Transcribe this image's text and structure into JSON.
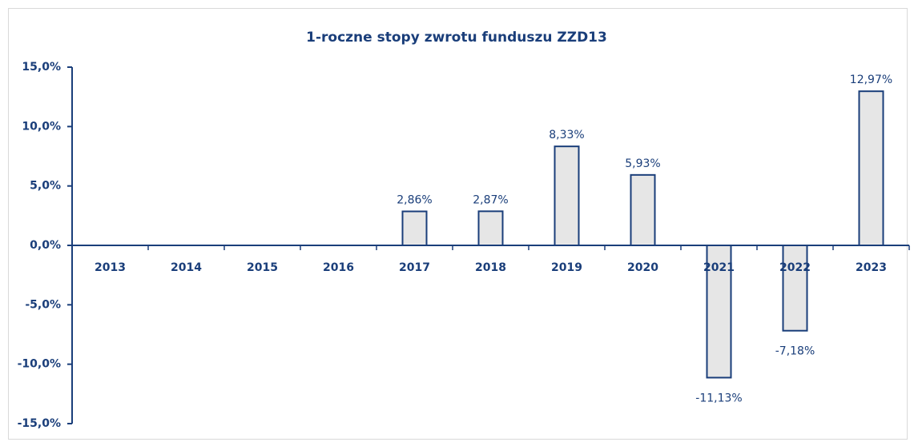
{
  "chart_data": {
    "type": "bar",
    "title": "1-roczne stopy zwrotu funduszu ZZD13",
    "categories": [
      "2013",
      "2014",
      "2015",
      "2016",
      "2017",
      "2018",
      "2019",
      "2020",
      "2021",
      "2022",
      "2023"
    ],
    "values": [
      null,
      null,
      null,
      null,
      2.86,
      2.87,
      8.33,
      5.93,
      -11.13,
      -7.18,
      12.97
    ],
    "value_labels": [
      null,
      null,
      null,
      null,
      "2,86%",
      "2,87%",
      "8,33%",
      "5,93%",
      "-11,13%",
      "-7,18%",
      "12,97%"
    ],
    "color": "#e6e6e6",
    "edge_color": "#1a3e7a",
    "ylim": [
      -15,
      15
    ],
    "yticks": [
      {
        "value": -15,
        "label": "-15,0%"
      },
      {
        "value": -10,
        "label": "-10,0%"
      },
      {
        "value": -5,
        "label": "-5,0%"
      },
      {
        "value": 0,
        "label": "0,0%"
      },
      {
        "value": 5,
        "label": "5,0%"
      },
      {
        "value": 10,
        "label": "10,0%"
      },
      {
        "value": 15,
        "label": "15,0%"
      }
    ],
    "grid": false
  }
}
